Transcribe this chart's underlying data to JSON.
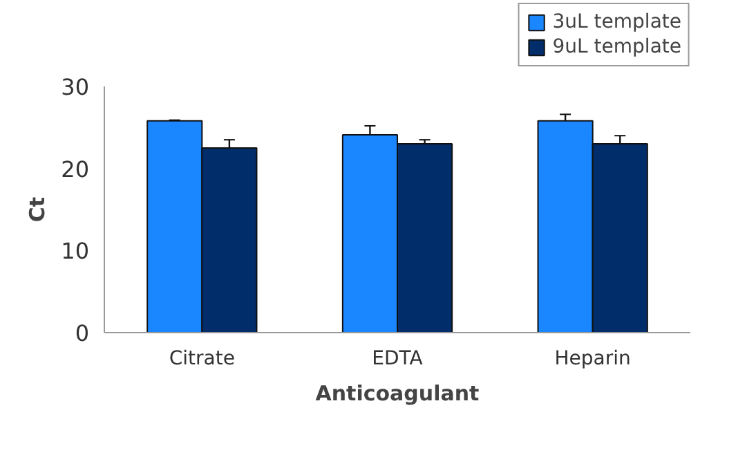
{
  "chart_data": {
    "type": "bar",
    "xlabel": "Anticoagulant",
    "ylabel": "Ct",
    "categories": [
      "Citrate",
      "EDTA",
      "Heparin"
    ],
    "series": [
      {
        "name": "3uL template",
        "color": "#1a86ff",
        "values": [
          25.8,
          24.1,
          25.8
        ],
        "errors": [
          0.1,
          1.1,
          0.8
        ]
      },
      {
        "name": "9uL template",
        "color": "#022d6b",
        "values": [
          22.5,
          23.0,
          23.0
        ],
        "errors": [
          1.0,
          0.5,
          1.0
        ]
      }
    ],
    "ylim": [
      0,
      30
    ],
    "yticks": [
      0,
      10,
      20,
      30
    ],
    "grid": false,
    "legend": "top right"
  }
}
